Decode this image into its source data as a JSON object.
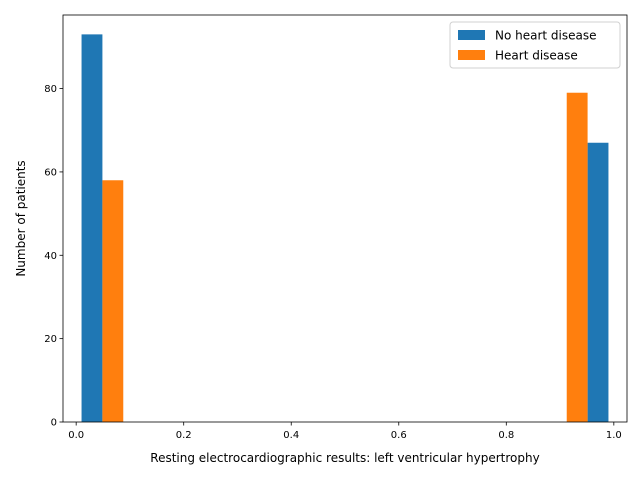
{
  "chart_data": {
    "type": "bar",
    "title": "",
    "xlabel": "Resting electrocardiographic results: left ventricular hypertrophy",
    "ylabel": "Number of patients",
    "xlim": [
      -0.0245,
      1.0245
    ],
    "ylim": [
      0,
      97.65
    ],
    "xticks": [
      0.0,
      0.2,
      0.4,
      0.6,
      0.8,
      1.0
    ],
    "xtick_labels": [
      "0.0",
      "0.2",
      "0.4",
      "0.6",
      "0.8",
      "1.0"
    ],
    "yticks": [
      0,
      20,
      40,
      60,
      80
    ],
    "ytick_labels": [
      "0",
      "20",
      "40",
      "60",
      "80"
    ],
    "grid": false,
    "legend_position": "top-right",
    "series": [
      {
        "name": "No heart disease",
        "color": "#1f77b4",
        "bars": [
          {
            "x0": 0.01,
            "x1": 0.0488,
            "value": 93
          },
          {
            "x0": 0.9512,
            "x1": 0.99,
            "value": 67
          }
        ]
      },
      {
        "name": "Heart disease",
        "color": "#ff7f0e",
        "bars": [
          {
            "x0": 0.0488,
            "x1": 0.0876,
            "value": 58
          },
          {
            "x0": 0.9124,
            "x1": 0.9512,
            "value": 79
          }
        ]
      }
    ]
  }
}
